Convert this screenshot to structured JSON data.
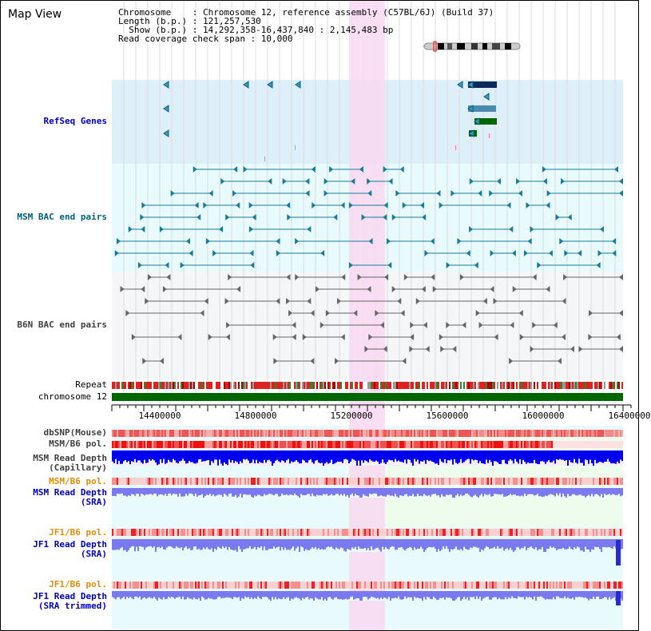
{
  "map_title": "Map View",
  "info": {
    "line1": "Chromosome    : Chromosome 12, reference assembly (C57BL/6J) (Build 37)",
    "line2": "Length (b.p.) : 121,257,530",
    "line3": "  Show (b.p.) : 14,292,358-16,437,840 : 2,145,483 bp",
    "line4": "Read coverage check span : 10,000"
  },
  "tracks": {
    "refseq": "RefSeq Genes",
    "msm_bac": "MSM BAC end pairs",
    "b6n_bac": "B6N BAC end pairs",
    "repeat": "Repeat",
    "chromosome": "chromosome 12",
    "dbsnp": "dbSNP(Mouse)",
    "msm_b6_pol": "MSM/B6 pol.",
    "msm_depth_cap_1": "MSM Read Depth",
    "msm_depth_cap_2": "(Capillary)",
    "msm_b6_pol_2": "MSM/B6 pol.",
    "msm_depth_sra_1": "MSM Read Depth",
    "msm_depth_sra_2": "(SRA)",
    "jf1_b6_pol": "JF1/B6 pol.",
    "jf1_depth_sra_1": "JF1 Read Depth",
    "jf1_depth_sra_2": "(SRA)",
    "jf1_b6_pol_2": "JF1/B6 pol.",
    "jf1_depth_trim_1": "JF1 Read Depth",
    "jf1_depth_trim_2": "(SRA trimmed)"
  },
  "axis_ticks": [
    "14400000",
    "14800000",
    "15200000",
    "15600000",
    "16000000",
    "16400000"
  ],
  "colors": {
    "highlight": "#f9d8f1",
    "refseq_bg": "#ddf0fa",
    "track_bg": "#e8fafc",
    "chromosome_bar": "#006600",
    "depth_blue": "#0000ee",
    "depth_light": "#7a7aee"
  }
}
